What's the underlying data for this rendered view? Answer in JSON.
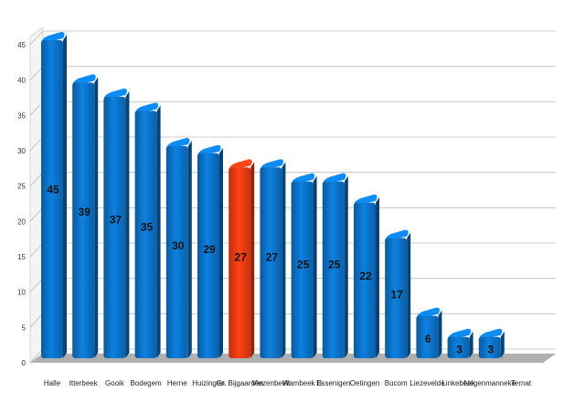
{
  "chart_data": {
    "type": "bar",
    "categories": [
      "Halle",
      "Itterbeek",
      "Gooik",
      "Bodegem",
      "Herne",
      "Huizingen",
      "Gr. Bijgaarden",
      "Vlezenbeek",
      "Wambeek B",
      "Essenigen",
      "Oetingen",
      "Bucom",
      "Liezevelde",
      "Linkebeek",
      "Negenmanneke",
      "Ternat"
    ],
    "values": [
      45,
      39,
      37,
      35,
      30,
      29,
      27,
      27,
      25,
      25,
      22,
      17,
      6,
      3,
      3,
      0
    ],
    "value_labels": [
      "45",
      "39",
      "37",
      "35",
      "30",
      "29",
      "27",
      "27",
      "25",
      "25",
      "22",
      "17",
      "6",
      "3",
      "3",
      ""
    ],
    "highlight_index": 6,
    "y_ticks": [
      "0",
      "5",
      "10",
      "15",
      "20",
      "25",
      "30",
      "35",
      "40",
      "45"
    ],
    "ylim": [
      0,
      45
    ],
    "grid": true,
    "title": "",
    "xlabel": "",
    "ylabel": "",
    "colors": {
      "bar": "#0b70c4",
      "bar_highlight": "#ee3a12",
      "grid": "#bdbdbd",
      "floor": "#a8a8a8"
    }
  }
}
